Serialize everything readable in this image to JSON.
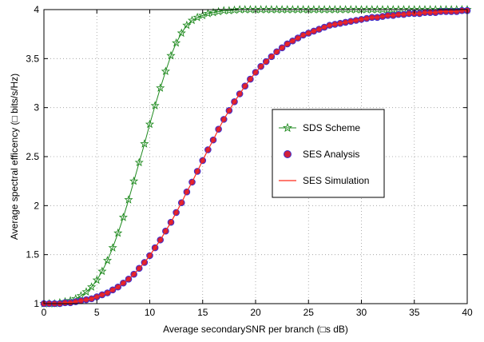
{
  "chart_data": {
    "type": "line",
    "xlabel": "Average secondarySNR per branch (□s dB)",
    "ylabel": "Average spectral efficency (□ bits/s/Hz)",
    "xlim": [
      0,
      40
    ],
    "ylim": [
      1,
      4
    ],
    "xticks": [
      "0",
      "5",
      "10",
      "15",
      "20",
      "25",
      "30",
      "35",
      "40"
    ],
    "yticks": [
      "1",
      "1.5",
      "2",
      "2.5",
      "3",
      "3.5",
      "4"
    ],
    "grid": true,
    "legend_position": "right",
    "series": [
      {
        "name": "SDS Scheme",
        "color": "#1f8a1f",
        "marker": "star",
        "x": [
          0,
          0.5,
          1,
          1.5,
          2,
          2.5,
          3,
          3.5,
          4,
          4.5,
          5,
          5.5,
          6,
          6.5,
          7,
          7.5,
          8,
          8.5,
          9,
          9.5,
          10,
          10.5,
          11,
          11.5,
          12,
          12.5,
          13,
          13.5,
          14,
          14.5,
          15,
          15.5,
          16,
          16.5,
          17,
          17.5,
          18,
          18.5,
          19,
          19.5,
          20,
          20.5,
          21,
          21.5,
          22,
          22.5,
          23,
          23.5,
          24,
          24.5,
          25,
          25.5,
          26,
          26.5,
          27,
          27.5,
          28,
          28.5,
          29,
          29.5,
          30,
          30.5,
          31,
          31.5,
          32,
          32.5,
          33,
          33.5,
          34,
          34.5,
          35,
          35.5,
          36,
          36.5,
          37,
          37.5,
          38,
          38.5,
          39,
          39.5,
          40
        ],
        "y": [
          1.0,
          1.0,
          1.0,
          1.01,
          1.02,
          1.03,
          1.05,
          1.08,
          1.12,
          1.17,
          1.24,
          1.33,
          1.44,
          1.57,
          1.72,
          1.88,
          2.06,
          2.25,
          2.44,
          2.63,
          2.83,
          3.02,
          3.2,
          3.37,
          3.53,
          3.66,
          3.76,
          3.84,
          3.89,
          3.92,
          3.94,
          3.96,
          3.97,
          3.98,
          3.99,
          3.99,
          3.995,
          4.0,
          4.0,
          4.0,
          4.0,
          4.0,
          4.0,
          4.0,
          4.0,
          4.0,
          4.0,
          4.0,
          4.0,
          4.0,
          4.0,
          4.0,
          4.0,
          4.0,
          4.0,
          4.0,
          4.0,
          4.0,
          4.0,
          4.0,
          4.0,
          4.0,
          4.0,
          4.0,
          4.0,
          4.0,
          4.0,
          4.0,
          4.0,
          4.0,
          4.0,
          4.0,
          4.0,
          4.0,
          4.0,
          4.0,
          4.0,
          4.0,
          4.0,
          4.0,
          4.0
        ]
      },
      {
        "name": "SES Analysis",
        "color": "#d0203a",
        "edge_color": "#3b2fd0",
        "marker": "circle",
        "x": [
          0,
          0.5,
          1,
          1.5,
          2,
          2.5,
          3,
          3.5,
          4,
          4.5,
          5,
          5.5,
          6,
          6.5,
          7,
          7.5,
          8,
          8.5,
          9,
          9.5,
          10,
          10.5,
          11,
          11.5,
          12,
          12.5,
          13,
          13.5,
          14,
          14.5,
          15,
          15.5,
          16,
          16.5,
          17,
          17.5,
          18,
          18.5,
          19,
          19.5,
          20,
          20.5,
          21,
          21.5,
          22,
          22.5,
          23,
          23.5,
          24,
          24.5,
          25,
          25.5,
          26,
          26.5,
          27,
          27.5,
          28,
          28.5,
          29,
          29.5,
          30,
          30.5,
          31,
          31.5,
          32,
          32.5,
          33,
          33.5,
          34,
          34.5,
          35,
          35.5,
          36,
          36.5,
          37,
          37.5,
          38,
          38.5,
          39,
          39.5,
          40
        ],
        "y": [
          1.0,
          1.0,
          1.0,
          1.0,
          1.01,
          1.01,
          1.02,
          1.03,
          1.04,
          1.05,
          1.07,
          1.09,
          1.11,
          1.14,
          1.17,
          1.21,
          1.25,
          1.3,
          1.36,
          1.42,
          1.49,
          1.57,
          1.65,
          1.74,
          1.83,
          1.93,
          2.03,
          2.14,
          2.24,
          2.35,
          2.46,
          2.57,
          2.67,
          2.78,
          2.88,
          2.97,
          3.06,
          3.14,
          3.22,
          3.29,
          3.36,
          3.42,
          3.47,
          3.52,
          3.57,
          3.61,
          3.65,
          3.68,
          3.71,
          3.74,
          3.76,
          3.78,
          3.8,
          3.82,
          3.84,
          3.85,
          3.86,
          3.87,
          3.88,
          3.89,
          3.9,
          3.91,
          3.92,
          3.92,
          3.93,
          3.94,
          3.94,
          3.95,
          3.95,
          3.96,
          3.96,
          3.96,
          3.97,
          3.97,
          3.97,
          3.98,
          3.98,
          3.98,
          3.98,
          3.99,
          3.99
        ]
      },
      {
        "name": "SES Simulation",
        "color": "#ff2a1a",
        "marker": "none",
        "x": [
          0,
          0.5,
          1,
          1.5,
          2,
          2.5,
          3,
          3.5,
          4,
          4.5,
          5,
          5.5,
          6,
          6.5,
          7,
          7.5,
          8,
          8.5,
          9,
          9.5,
          10,
          10.5,
          11,
          11.5,
          12,
          12.5,
          13,
          13.5,
          14,
          14.5,
          15,
          15.5,
          16,
          16.5,
          17,
          17.5,
          18,
          18.5,
          19,
          19.5,
          20,
          20.5,
          21,
          21.5,
          22,
          22.5,
          23,
          23.5,
          24,
          24.5,
          25,
          25.5,
          26,
          26.5,
          27,
          27.5,
          28,
          28.5,
          29,
          29.5,
          30,
          30.5,
          31,
          31.5,
          32,
          32.5,
          33,
          33.5,
          34,
          34.5,
          35,
          35.5,
          36,
          36.5,
          37,
          37.5,
          38,
          38.5,
          39,
          39.5,
          40
        ],
        "y": [
          1.0,
          1.0,
          1.0,
          1.0,
          1.01,
          1.01,
          1.02,
          1.03,
          1.04,
          1.05,
          1.07,
          1.09,
          1.11,
          1.14,
          1.17,
          1.21,
          1.25,
          1.3,
          1.36,
          1.42,
          1.49,
          1.57,
          1.65,
          1.74,
          1.83,
          1.93,
          2.03,
          2.14,
          2.24,
          2.35,
          2.46,
          2.57,
          2.67,
          2.78,
          2.88,
          2.97,
          3.06,
          3.14,
          3.22,
          3.29,
          3.36,
          3.42,
          3.47,
          3.52,
          3.57,
          3.61,
          3.65,
          3.68,
          3.71,
          3.74,
          3.76,
          3.78,
          3.8,
          3.82,
          3.84,
          3.85,
          3.86,
          3.87,
          3.88,
          3.89,
          3.9,
          3.91,
          3.92,
          3.92,
          3.93,
          3.94,
          3.94,
          3.95,
          3.95,
          3.96,
          3.96,
          3.96,
          3.97,
          3.97,
          3.97,
          3.98,
          3.98,
          3.98,
          3.98,
          3.99,
          3.99
        ]
      }
    ]
  }
}
